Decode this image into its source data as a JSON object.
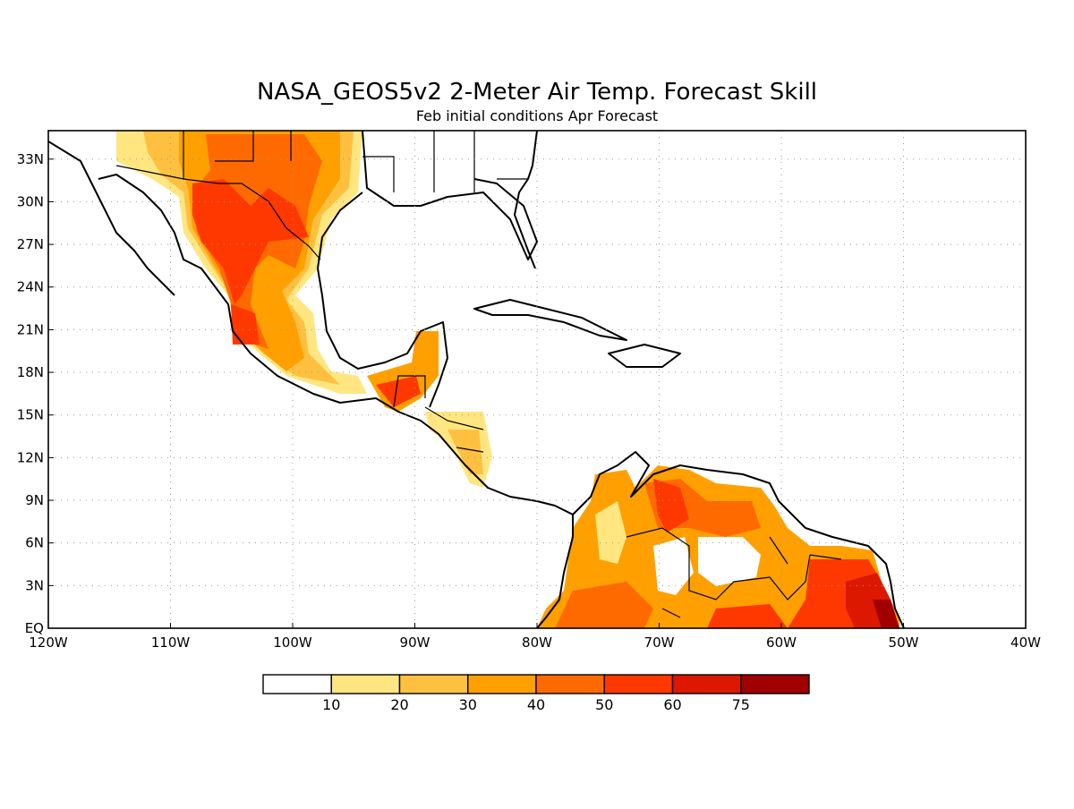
{
  "title": "NASA_GEOS5v2 2-Meter Air Temp. Forecast Skill",
  "subtitle": "Feb initial conditions  Apr Forecast",
  "map": {
    "lon_range": [
      -120,
      -40
    ],
    "lat_range": [
      0,
      35
    ],
    "x_ticks": [
      "120W",
      "110W",
      "100W",
      "90W",
      "80W",
      "70W",
      "60W",
      "50W",
      "40W"
    ],
    "y_ticks": [
      "EQ",
      "3N",
      "6N",
      "9N",
      "12N",
      "15N",
      "18N",
      "21N",
      "24N",
      "27N",
      "30N",
      "33N"
    ],
    "grid": "dotted"
  },
  "colorbar": {
    "colors": [
      "#ffffff",
      "#ffe680",
      "#ffc040",
      "#ffa000",
      "#ff6a00",
      "#ff3800",
      "#dd1800",
      "#a00000"
    ],
    "labels": [
      "10",
      "20",
      "30",
      "40",
      "50",
      "60",
      "75"
    ]
  }
}
